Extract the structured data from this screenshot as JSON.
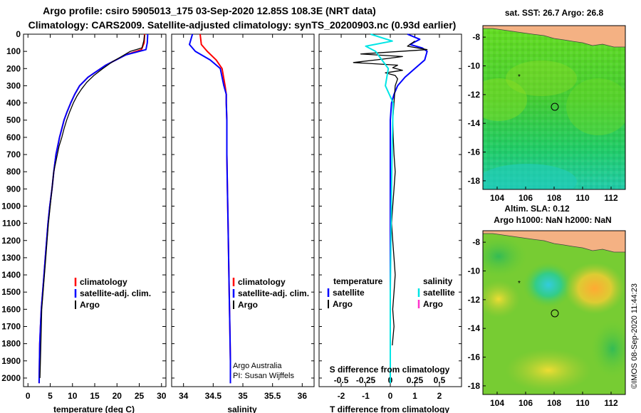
{
  "title": {
    "line1": "Argo profile: csiro 5905013_175 03-Sep-2020 12.85S 108.3E (NRT data)",
    "line2": "Climatology: CARS2009. Satellite-adjusted climatology: synTS_20200903.nc (0.93d earlier)"
  },
  "watermark": "©IMOS 08-Sep-2020 11:44:23",
  "colors": {
    "climatology": "#ff0000",
    "satellite": "#0000ff",
    "argo": "#000000",
    "satellite_salinity": "#00e5e5",
    "argo_salinity": "#ff33cc",
    "land": "#f4b183",
    "sea_green": "#33cc33"
  },
  "chart_data": [
    {
      "id": "temperature",
      "type": "line",
      "xlabel": "temperature (deg C)",
      "ylabel": "",
      "xlim": [
        -1,
        31
      ],
      "ylim": [
        2050,
        0
      ],
      "xticks": [
        0,
        5,
        10,
        15,
        20,
        25,
        30
      ],
      "xtick_labels": [
        "0",
        "5",
        "10",
        "15",
        "20",
        "25",
        "30"
      ],
      "yticks": [
        0,
        100,
        200,
        300,
        400,
        500,
        600,
        700,
        800,
        900,
        1000,
        1100,
        1200,
        1300,
        1400,
        1500,
        1600,
        1700,
        1800,
        1900,
        2000
      ],
      "ytick_labels": [
        "0",
        "100",
        "200",
        "300",
        "400",
        "500",
        "600",
        "700",
        "800",
        "900",
        "1000",
        "1100",
        "1200",
        "1300",
        "1400",
        "1500",
        "1600",
        "1700",
        "1800",
        "1900",
        "2000"
      ],
      "legend": {
        "position": "bottom-right",
        "entries": [
          "climatology",
          "satellite-adj. clim.",
          "Argo"
        ]
      },
      "series": [
        {
          "name": "climatology",
          "color": "#ff0000",
          "x": [
            26.2,
            26.1,
            25.5,
            22.0,
            17.5,
            13.5,
            11.6,
            10.5,
            9.6,
            8.8,
            8.1,
            7.6,
            7.1,
            6.7,
            6.3,
            5.8,
            5.4,
            4.9,
            4.5,
            4.2,
            3.9,
            3.6,
            3.3,
            3.0,
            2.8,
            2.65,
            2.5
          ],
          "y": [
            0,
            50,
            90,
            120,
            180,
            250,
            300,
            350,
            400,
            450,
            500,
            550,
            600,
            650,
            700,
            800,
            900,
            1000,
            1100,
            1200,
            1300,
            1400,
            1500,
            1600,
            1700,
            1800,
            2030
          ]
        },
        {
          "name": "satellite-adj. clim.",
          "color": "#0000ff",
          "x": [
            26.9,
            26.8,
            26.5,
            22.0,
            17.5,
            13.5,
            11.6,
            10.5,
            9.6,
            8.8,
            8.1,
            7.6,
            7.1,
            6.7,
            6.3,
            5.8,
            5.4,
            4.9,
            4.5,
            4.2,
            3.9,
            3.6,
            3.3,
            3.0,
            2.8,
            2.65,
            2.5
          ],
          "y": [
            0,
            50,
            90,
            120,
            180,
            250,
            300,
            350,
            400,
            450,
            500,
            550,
            600,
            650,
            700,
            800,
            900,
            1000,
            1100,
            1200,
            1300,
            1400,
            1500,
            1600,
            1700,
            1800,
            2030
          ]
        },
        {
          "name": "Argo",
          "color": "#000000",
          "x": [
            26.2,
            26.0,
            25.6,
            23.0,
            21.0,
            19.0,
            16.8,
            14.8,
            13.2,
            12.0,
            11.0,
            10.2,
            9.4,
            8.7,
            8.1,
            7.6,
            7.0,
            6.6,
            6.2,
            5.8,
            5.4,
            5.0,
            4.6,
            4.3,
            4.0,
            3.7,
            3.4,
            3.1,
            2.9,
            2.7
          ],
          "y": [
            5,
            40,
            80,
            100,
            130,
            160,
            200,
            240,
            280,
            320,
            360,
            400,
            450,
            500,
            550,
            600,
            650,
            700,
            750,
            800,
            900,
            1000,
            1100,
            1200,
            1300,
            1400,
            1500,
            1600,
            1800,
            2000
          ]
        }
      ]
    },
    {
      "id": "salinity",
      "type": "line",
      "xlabel": "salinity",
      "xlim": [
        33.8,
        36.2
      ],
      "ylim": [
        2050,
        0
      ],
      "xticks": [
        34,
        34.5,
        35,
        35.5,
        36
      ],
      "xtick_labels": [
        "34",
        "34.5",
        "35",
        "35.5",
        "36"
      ],
      "legend": {
        "position": "bottom-right",
        "entries": [
          "climatology",
          "satellite-adj. clim.",
          "Argo"
        ]
      },
      "annotations": [
        "Argo Australia",
        "PI: Susan Wijffels"
      ],
      "series": [
        {
          "name": "climatology",
          "color": "#ff0000",
          "x": [
            34.28,
            34.3,
            34.4,
            34.55,
            34.65,
            34.7,
            34.72,
            34.72,
            34.73,
            34.73,
            34.74,
            34.75,
            34.76,
            34.77,
            34.78,
            34.79,
            34.79
          ],
          "y": [
            0,
            60,
            100,
            150,
            200,
            300,
            350,
            400,
            500,
            700,
            900,
            1100,
            1300,
            1500,
            1700,
            1900,
            2030
          ]
        },
        {
          "name": "satellite-adj. clim.",
          "color": "#0000ff",
          "x": [
            34.15,
            34.1,
            34.2,
            34.45,
            34.62,
            34.68,
            34.72,
            34.72,
            34.73,
            34.73,
            34.74,
            34.75,
            34.76,
            34.77,
            34.78,
            34.79,
            34.79
          ],
          "y": [
            0,
            60,
            100,
            150,
            200,
            300,
            350,
            400,
            500,
            700,
            900,
            1100,
            1300,
            1500,
            1700,
            1900,
            2030
          ]
        }
      ]
    },
    {
      "id": "difference",
      "type": "line",
      "xlabel": "T difference from climatology",
      "xlabel_top": "S difference from climatology",
      "xlim": [
        -2.9,
        2.9
      ],
      "ylim": [
        2050,
        0
      ],
      "xticks": [
        -2,
        -1,
        0,
        1,
        2
      ],
      "xtick_labels": [
        "-2",
        "-1",
        "0",
        "1",
        "2"
      ],
      "sticks": [
        -0.5,
        -0.25,
        0,
        0.25,
        0.5
      ],
      "stick_labels": [
        "-0.5",
        "-0.25",
        "0",
        "0.25",
        "0.5"
      ],
      "legend": {
        "position": "bottom",
        "temperature_header": "temperature",
        "salinity_header": "salinity",
        "temperature_entries": [
          "satellite",
          "Argo"
        ],
        "salinity_entries": [
          "satellite",
          "Argo"
        ]
      },
      "series": [
        {
          "name": "T satellite",
          "color": "#0000ff",
          "x": [
            0.7,
            1.2,
            0.8,
            1.3,
            1.5,
            1.4,
            1.0,
            0.6,
            0.3,
            0.15,
            0.05,
            0,
            0,
            0,
            0,
            0
          ],
          "y": [
            0,
            30,
            60,
            80,
            100,
            150,
            200,
            250,
            300,
            350,
            400,
            500,
            800,
            1200,
            1600,
            2030
          ]
        },
        {
          "name": "T Argo",
          "color": "#000000",
          "x": [
            1.0,
            0.7,
            1.5,
            -1.2,
            0.5,
            -0.3,
            -1.5,
            0.3,
            0.1,
            0.5,
            -0.2,
            0.2,
            0.3,
            0.2,
            0.15,
            0.1,
            0.12,
            0.15,
            0.2,
            0.15,
            0.1,
            0.05,
            0.1,
            0.15,
            0.2,
            0.15,
            0.1,
            0.15,
            0.08
          ],
          "y": [
            40,
            70,
            90,
            115,
            130,
            145,
            165,
            180,
            195,
            210,
            225,
            240,
            260,
            300,
            400,
            500,
            600,
            700,
            800,
            900,
            1000,
            1100,
            1200,
            1300,
            1400,
            1500,
            1600,
            1700,
            1810
          ]
        },
        {
          "name": "S satellite",
          "color": "#00e5e5",
          "x": [
            -0.2,
            0.02,
            -0.25,
            -0.15,
            -0.02,
            -0.05,
            0.03,
            0.02,
            0.01,
            0.0,
            0.0
          ],
          "y": [
            0,
            40,
            70,
            100,
            200,
            300,
            400,
            600,
            1000,
            1500,
            2030
          ]
        }
      ]
    },
    {
      "id": "sst_map",
      "type": "heatmap",
      "title": "sat. SST: 26.7 Argo: 26.8",
      "xticks": [
        104,
        106,
        108,
        110,
        112
      ],
      "xtick_labels": [
        "104",
        "106",
        "108",
        "110",
        "112"
      ],
      "yticks": [
        -8,
        -10,
        -12,
        -14,
        -16,
        -18
      ],
      "ytick_labels": [
        "-8",
        "-10",
        "-12",
        "-14",
        "-16",
        "-18"
      ],
      "xlim": [
        103,
        113
      ],
      "ylim": [
        -18.6,
        -7.2
      ],
      "float_position": [
        108.3,
        -12.85
      ],
      "previous_position": [
        105.6,
        -10.6
      ]
    },
    {
      "id": "sla_map",
      "type": "heatmap",
      "title": "Altim. SLA: 0.12",
      "subtitle": "Argo h1000: NaN h2000: NaN",
      "xticks": [
        104,
        106,
        108,
        110,
        112
      ],
      "xtick_labels": [
        "104",
        "106",
        "108",
        "110",
        "112"
      ],
      "yticks": [
        -8,
        -10,
        -12,
        -14,
        -16,
        -18
      ],
      "ytick_labels": [
        "-8",
        "-10",
        "-12",
        "-14",
        "-16",
        "-18"
      ],
      "xlim": [
        103,
        113
      ],
      "ylim": [
        -18.6,
        -7.2
      ],
      "float_position": [
        108.3,
        -12.85
      ],
      "previous_position": [
        105.6,
        -10.6
      ]
    }
  ]
}
